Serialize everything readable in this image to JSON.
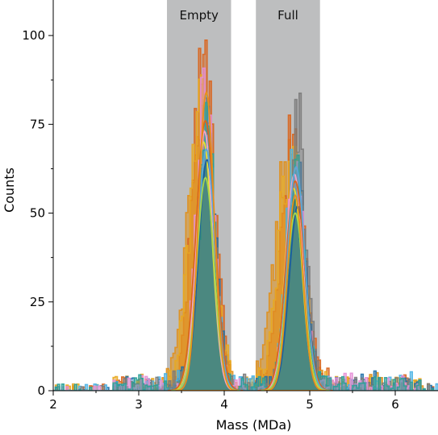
{
  "chart_data": {
    "type": "area",
    "xlabel": "Mass (MDa)",
    "ylabel": "Counts",
    "xlim": [
      2,
      6.5
    ],
    "ylim": [
      0,
      110
    ],
    "xticks": [
      2,
      3,
      4,
      5,
      6
    ],
    "yticks": [
      0,
      25,
      50,
      75,
      100
    ],
    "grid": false,
    "legend": "none",
    "regions": [
      {
        "label": "Empty",
        "x_start": 3.33,
        "x_end": 4.08,
        "color": "#bdbebf"
      },
      {
        "label": "Full",
        "x_start": 4.37,
        "x_end": 5.12,
        "color": "#bdbebf"
      }
    ],
    "histograms": [
      {
        "color": "#e08f1a",
        "empty": {
          "center": 3.72,
          "sd": 0.15,
          "peak": 70
        },
        "full": {
          "center": 4.75,
          "sd": 0.16,
          "peak": 60
        }
      },
      {
        "color": "#d9651e",
        "empty": {
          "center": 3.76,
          "sd": 0.13,
          "peak": 88
        },
        "full": {
          "center": 4.8,
          "sd": 0.14,
          "peak": 70
        }
      },
      {
        "color": "#e8a820",
        "empty": {
          "center": 3.74,
          "sd": 0.14,
          "peak": 80
        },
        "full": {
          "center": 4.78,
          "sd": 0.14,
          "peak": 64
        }
      },
      {
        "color": "#1f6fa8",
        "empty": {
          "center": 3.8,
          "sd": 0.1,
          "peak": 74
        },
        "full": {
          "center": 4.85,
          "sd": 0.1,
          "peak": 62
        }
      },
      {
        "color": "#4ab3e6",
        "empty": {
          "center": 3.79,
          "sd": 0.1,
          "peak": 72
        },
        "full": {
          "center": 4.83,
          "sd": 0.1,
          "peak": 66
        }
      },
      {
        "color": "#7a7a7a",
        "empty": {
          "center": 3.8,
          "sd": 0.1,
          "peak": 68
        },
        "full": {
          "center": 4.86,
          "sd": 0.1,
          "peak": 72
        }
      },
      {
        "color": "#e58fd6",
        "empty": {
          "center": 3.78,
          "sd": 0.1,
          "peak": 82
        },
        "full": {
          "center": 4.84,
          "sd": 0.1,
          "peak": 60
        }
      },
      {
        "color": "#2aa198",
        "empty": {
          "center": 3.79,
          "sd": 0.1,
          "peak": 70
        },
        "full": {
          "center": 4.84,
          "sd": 0.1,
          "peak": 56
        }
      }
    ],
    "fits": [
      {
        "color": "#2f7d63",
        "empty": {
          "center": 3.79,
          "sd": 0.1,
          "peak": 64
        },
        "full": {
          "center": 4.84,
          "sd": 0.1,
          "peak": 54
        }
      },
      {
        "color": "#e8e030",
        "empty": {
          "center": 3.76,
          "sd": 0.1,
          "peak": 70
        },
        "full": {
          "center": 4.81,
          "sd": 0.1,
          "peak": 57
        }
      },
      {
        "color": "#f4a3c8",
        "empty": {
          "center": 3.77,
          "sd": 0.095,
          "peak": 73
        },
        "full": {
          "center": 4.82,
          "sd": 0.1,
          "peak": 61
        }
      },
      {
        "color": "#1b5e9e",
        "empty": {
          "center": 3.8,
          "sd": 0.1,
          "peak": 65
        },
        "full": {
          "center": 4.86,
          "sd": 0.1,
          "peak": 52
        }
      },
      {
        "color": "#d9651e",
        "empty": {
          "center": 3.78,
          "sd": 0.11,
          "peak": 76
        },
        "full": {
          "center": 4.83,
          "sd": 0.11,
          "peak": 59
        }
      },
      {
        "color": "#5aa8d8",
        "empty": {
          "center": 3.79,
          "sd": 0.1,
          "peak": 68
        },
        "full": {
          "center": 4.84,
          "sd": 0.1,
          "peak": 63
        }
      },
      {
        "color": "#a8d84a",
        "empty": {
          "center": 3.78,
          "sd": 0.1,
          "peak": 60
        },
        "full": {
          "center": 4.83,
          "sd": 0.1,
          "peak": 50
        }
      },
      {
        "color": "#e8901a",
        "empty": {
          "center": 3.79,
          "sd": 0.09,
          "peak": 84
        },
        "full": {
          "center": 4.83,
          "sd": 0.09,
          "peak": 55
        }
      }
    ]
  }
}
